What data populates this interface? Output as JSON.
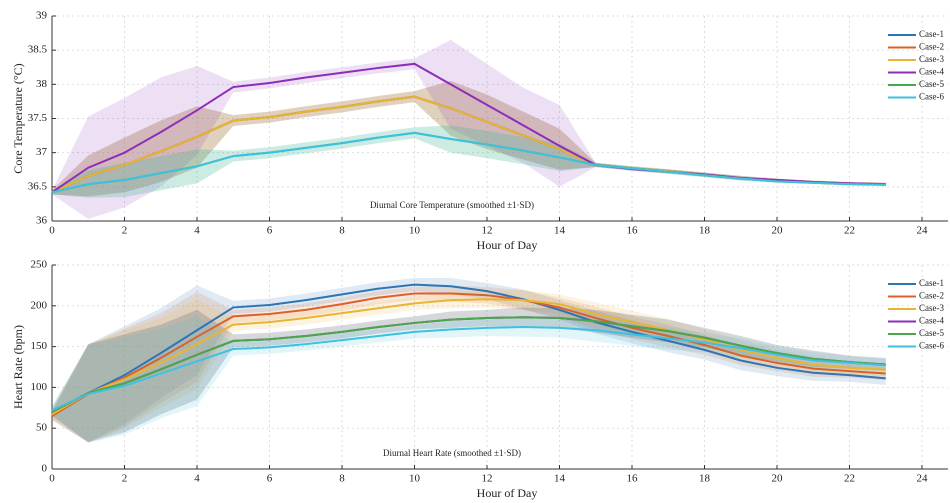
{
  "chart_data": [
    {
      "type": "line",
      "ylabel": "Core Temperature (°C)",
      "xlabel": "Hour of Day",
      "annotation": "Diurnal Core Temperature (smoothed ±1·SD)",
      "x": [
        0,
        1,
        2,
        3,
        4,
        5,
        6,
        7,
        8,
        9,
        10,
        11,
        12,
        13,
        14,
        15,
        16,
        17,
        18,
        19,
        20,
        21,
        22,
        23
      ],
      "xlim": [
        0,
        24
      ],
      "xticks": [
        0,
        2,
        4,
        6,
        8,
        10,
        12,
        14,
        16,
        18,
        20,
        22,
        24
      ],
      "ylim": [
        36,
        39
      ],
      "yticks": [
        36,
        36.5,
        37,
        37.5,
        38,
        38.5,
        39
      ],
      "grid": true,
      "legend": "upper right",
      "series": [
        {
          "name": "Case-1",
          "color": "#2e75b6",
          "values": [
            36.42,
            36.66,
            36.82,
            37.02,
            37.23,
            37.47,
            37.52,
            37.6,
            37.67,
            37.75,
            37.82,
            37.65,
            37.45,
            37.25,
            37.05,
            36.82,
            36.77,
            36.73,
            36.68,
            36.63,
            36.6,
            36.57,
            36.55,
            36.54
          ],
          "sd": [
            0.03,
            0.3,
            0.4,
            0.45,
            0.45,
            0.08,
            0.08,
            0.08,
            0.08,
            0.08,
            0.08,
            0.4,
            0.4,
            0.35,
            0.3,
            0.03,
            0.03,
            0.03,
            0.03,
            0.03,
            0.02,
            0.02,
            0.02,
            0.02
          ]
        },
        {
          "name": "Case-2",
          "color": "#d9622b",
          "values": [
            36.42,
            36.66,
            36.82,
            37.02,
            37.23,
            37.47,
            37.52,
            37.6,
            37.67,
            37.75,
            37.82,
            37.65,
            37.45,
            37.25,
            37.05,
            36.82,
            36.77,
            36.73,
            36.68,
            36.63,
            36.6,
            36.57,
            36.55,
            36.54
          ],
          "sd": [
            0.03,
            0.3,
            0.4,
            0.45,
            0.45,
            0.08,
            0.08,
            0.08,
            0.08,
            0.08,
            0.08,
            0.4,
            0.4,
            0.35,
            0.3,
            0.03,
            0.03,
            0.03,
            0.03,
            0.03,
            0.02,
            0.02,
            0.02,
            0.02
          ]
        },
        {
          "name": "Case-3",
          "color": "#e8b436",
          "values": [
            36.42,
            36.66,
            36.82,
            37.02,
            37.23,
            37.47,
            37.52,
            37.6,
            37.67,
            37.75,
            37.82,
            37.65,
            37.45,
            37.25,
            37.05,
            36.82,
            36.77,
            36.73,
            36.68,
            36.63,
            36.6,
            36.57,
            36.55,
            36.54
          ],
          "sd": [
            0.03,
            0.3,
            0.4,
            0.45,
            0.45,
            0.08,
            0.08,
            0.08,
            0.08,
            0.08,
            0.08,
            0.4,
            0.4,
            0.35,
            0.3,
            0.03,
            0.03,
            0.03,
            0.03,
            0.03,
            0.02,
            0.02,
            0.02,
            0.02
          ]
        },
        {
          "name": "Case-4",
          "color": "#8e2db8",
          "values": [
            36.42,
            36.78,
            37.0,
            37.3,
            37.62,
            37.96,
            38.02,
            38.1,
            38.17,
            38.24,
            38.3,
            38.0,
            37.7,
            37.4,
            37.1,
            36.82,
            36.76,
            36.72,
            36.68,
            36.63,
            36.6,
            36.57,
            36.55,
            36.54
          ],
          "sd": [
            0.03,
            0.75,
            0.8,
            0.8,
            0.65,
            0.08,
            0.08,
            0.08,
            0.08,
            0.08,
            0.08,
            0.65,
            0.6,
            0.55,
            0.6,
            0.03,
            0.03,
            0.03,
            0.03,
            0.03,
            0.02,
            0.02,
            0.02,
            0.02
          ]
        },
        {
          "name": "Case-5",
          "color": "#4aa84a",
          "values": [
            36.42,
            36.54,
            36.6,
            36.7,
            36.8,
            36.95,
            37.0,
            37.07,
            37.14,
            37.22,
            37.29,
            37.2,
            37.12,
            37.03,
            36.93,
            36.82,
            36.77,
            36.72,
            36.67,
            36.62,
            36.58,
            36.56,
            36.54,
            36.53
          ],
          "sd": [
            0.03,
            0.2,
            0.25,
            0.25,
            0.25,
            0.08,
            0.08,
            0.08,
            0.08,
            0.08,
            0.08,
            0.2,
            0.2,
            0.2,
            0.2,
            0.03,
            0.03,
            0.03,
            0.03,
            0.03,
            0.02,
            0.02,
            0.02,
            0.02
          ]
        },
        {
          "name": "Case-6",
          "color": "#3ec1e0",
          "values": [
            36.42,
            36.54,
            36.6,
            36.7,
            36.8,
            36.95,
            37.0,
            37.07,
            37.14,
            37.22,
            37.29,
            37.2,
            37.12,
            37.03,
            36.93,
            36.82,
            36.77,
            36.72,
            36.67,
            36.62,
            36.58,
            36.56,
            36.54,
            36.53
          ],
          "sd": [
            0.03,
            0.2,
            0.25,
            0.25,
            0.25,
            0.08,
            0.08,
            0.08,
            0.08,
            0.08,
            0.08,
            0.2,
            0.2,
            0.2,
            0.2,
            0.03,
            0.03,
            0.03,
            0.03,
            0.03,
            0.02,
            0.02,
            0.02,
            0.02
          ]
        }
      ]
    },
    {
      "type": "line",
      "ylabel": "Heart Rate (bpm)",
      "xlabel": "Hour of Day",
      "annotation": "Diurnal Heart Rate (smoothed ±1·SD)",
      "x": [
        0,
        1,
        2,
        3,
        4,
        5,
        6,
        7,
        8,
        9,
        10,
        11,
        12,
        13,
        14,
        15,
        16,
        17,
        18,
        19,
        20,
        21,
        22,
        23
      ],
      "xlim": [
        0,
        24
      ],
      "xticks": [
        0,
        2,
        4,
        6,
        8,
        10,
        12,
        14,
        16,
        18,
        20,
        22,
        24
      ],
      "ylim": [
        0,
        250
      ],
      "yticks": [
        0,
        50,
        100,
        150,
        200,
        250
      ],
      "grid": true,
      "legend": "upper right",
      "series": [
        {
          "name": "Case-1",
          "color": "#2e75b6",
          "values": [
            65,
            93,
            115,
            142,
            170,
            198,
            201,
            207,
            214,
            221,
            226,
            224,
            218,
            208,
            195,
            180,
            168,
            157,
            146,
            133,
            124,
            118,
            115,
            111
          ],
          "sd": [
            5,
            60,
            60,
            55,
            55,
            8,
            8,
            8,
            8,
            8,
            8,
            10,
            10,
            12,
            12,
            14,
            14,
            14,
            12,
            12,
            10,
            10,
            8,
            8
          ]
        },
        {
          "name": "Case-2",
          "color": "#d9622b",
          "values": [
            65,
            92,
            112,
            136,
            162,
            187,
            190,
            195,
            202,
            210,
            215,
            215,
            213,
            207,
            198,
            185,
            173,
            163,
            152,
            139,
            130,
            123,
            120,
            117
          ],
          "sd": [
            5,
            60,
            60,
            55,
            55,
            8,
            8,
            8,
            8,
            8,
            8,
            10,
            10,
            12,
            12,
            14,
            14,
            14,
            12,
            12,
            10,
            10,
            8,
            8
          ]
        },
        {
          "name": "Case-3",
          "color": "#e8b436",
          "values": [
            67,
            93,
            110,
            130,
            153,
            177,
            180,
            185,
            191,
            197,
            203,
            207,
            208,
            207,
            202,
            190,
            180,
            170,
            159,
            146,
            136,
            128,
            124,
            122
          ],
          "sd": [
            5,
            60,
            60,
            55,
            55,
            8,
            8,
            8,
            8,
            8,
            8,
            10,
            10,
            12,
            12,
            14,
            14,
            14,
            12,
            12,
            10,
            10,
            8,
            8
          ]
        },
        {
          "name": "Case-4",
          "color": "#8e2db8",
          "values": [
            70,
            93,
            105,
            122,
            140,
            157,
            159,
            163,
            168,
            174,
            179,
            183,
            185,
            186,
            185,
            181,
            175,
            169,
            161,
            151,
            142,
            135,
            131,
            128
          ],
          "sd": [
            5,
            60,
            60,
            55,
            55,
            8,
            8,
            8,
            8,
            8,
            8,
            10,
            10,
            12,
            12,
            14,
            14,
            14,
            12,
            12,
            10,
            10,
            8,
            8
          ]
        },
        {
          "name": "Case-5",
          "color": "#4aa84a",
          "values": [
            70,
            93,
            105,
            122,
            140,
            157,
            159,
            163,
            168,
            174,
            179,
            183,
            185,
            186,
            185,
            181,
            175,
            169,
            161,
            151,
            142,
            135,
            131,
            128
          ],
          "sd": [
            5,
            60,
            60,
            55,
            55,
            8,
            8,
            8,
            8,
            8,
            8,
            10,
            10,
            12,
            12,
            14,
            14,
            14,
            12,
            12,
            10,
            10,
            8,
            8
          ]
        },
        {
          "name": "Case-6",
          "color": "#3ec1e0",
          "values": [
            72,
            92,
            102,
            117,
            132,
            147,
            149,
            153,
            158,
            163,
            168,
            171,
            173,
            174,
            173,
            170,
            165,
            160,
            155,
            148,
            140,
            133,
            130,
            127
          ],
          "sd": [
            5,
            60,
            60,
            55,
            55,
            8,
            8,
            8,
            8,
            8,
            8,
            10,
            10,
            12,
            12,
            14,
            14,
            14,
            12,
            12,
            10,
            10,
            8,
            8
          ]
        }
      ]
    }
  ]
}
